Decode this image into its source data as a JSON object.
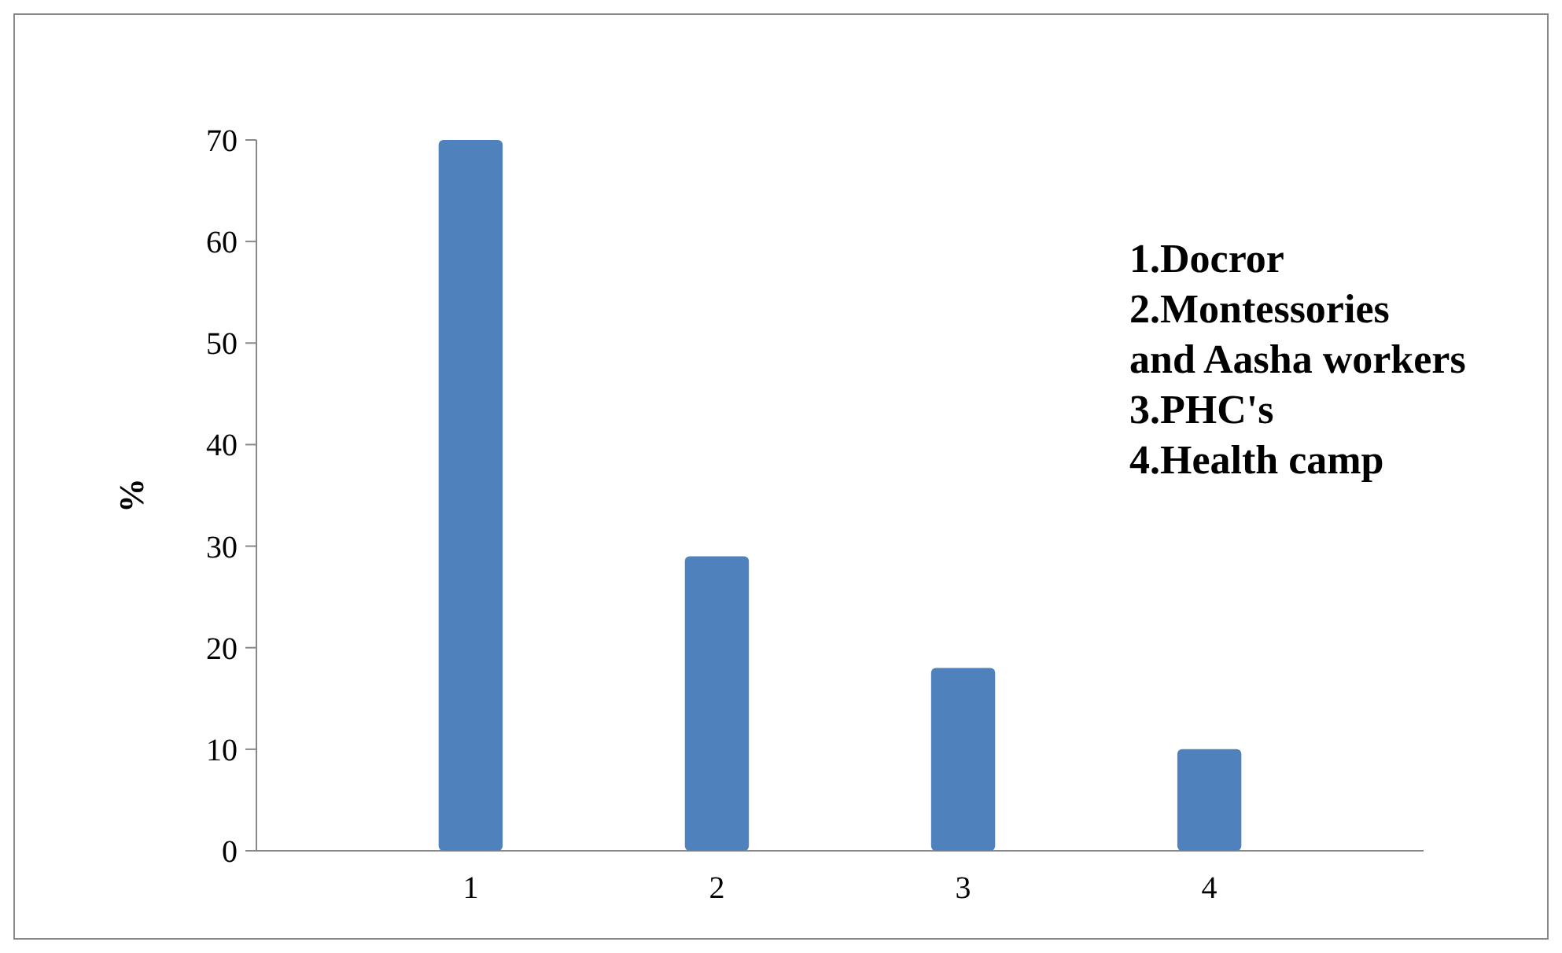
{
  "chart_data": {
    "type": "bar",
    "ylabel": "%",
    "categories": [
      "1",
      "2",
      "3",
      "4"
    ],
    "values": [
      70,
      29,
      18,
      10
    ],
    "color": "#4f81bd",
    "ylim": [
      0,
      70
    ],
    "yticks": [
      0,
      10,
      20,
      30,
      40,
      50,
      60,
      70
    ],
    "grid": false,
    "annotations": [
      "1.Docror",
      "2.Montessories\nand Aasha workers",
      "3.PHC's",
      "4.Health camp"
    ]
  }
}
